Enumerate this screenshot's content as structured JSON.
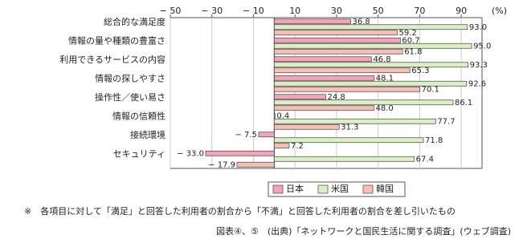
{
  "chart_data": {
    "type": "barh",
    "categories": [
      "総合的な満足度",
      "情報の量や種類の豊富さ",
      "利用できるサービスの内容",
      "情報の探しやすさ",
      "操作性／使い易さ",
      "情報の信頼性",
      "接続環境",
      "セキュリティ"
    ],
    "series": [
      {
        "name": "日本",
        "color": "#f4a3b8",
        "values": [
          36.8,
          60.7,
          46.8,
          48.1,
          24.8,
          0.4,
          -7.5,
          -33.0
        ],
        "value_labels": [
          "36.8",
          "60.7",
          "46.8",
          "48.1",
          "24.8",
          "0.4",
          "− 7.5",
          "− 33.0"
        ]
      },
      {
        "name": "米国",
        "color": "#daf0c4",
        "values": [
          93.0,
          95.0,
          93.3,
          92.6,
          86.1,
          77.7,
          71.8,
          67.4
        ],
        "value_labels": [
          "93.0",
          "95.0",
          "93.3",
          "92.6",
          "86.1",
          "77.7",
          "71.8",
          "67.4"
        ]
      },
      {
        "name": "韓国",
        "color": "#f8bfb4",
        "values": [
          59.2,
          61.8,
          65.3,
          70.1,
          48.0,
          31.3,
          7.2,
          -17.9
        ],
        "value_labels": [
          "59.2",
          "61.8",
          "65.3",
          "70.1",
          "48.0",
          "31.3",
          "7.2",
          "− 17.9"
        ]
      }
    ],
    "xlim": [
      -50,
      100
    ],
    "xticks": [
      {
        "value": -50,
        "label": "− 50"
      },
      {
        "value": -30,
        "label": "− 30"
      },
      {
        "value": -10,
        "label": "− 10"
      },
      10,
      30,
      50,
      70,
      90
    ],
    "x_unit": "(%)",
    "grid": true,
    "legend": "bottom",
    "note": "※　各項目に対して「満足」と回答した利用者の割合から「不満」と回答した利用者の割合を差し引いたもの",
    "source": "図表④、⑤　(出典)「ネットワークと国民生活に関する調査」(ウェブ調査)"
  }
}
